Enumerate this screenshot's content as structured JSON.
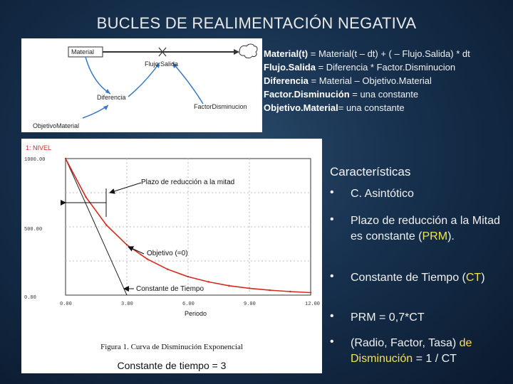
{
  "title": "BUCLES DE REALIMENTACIÓN NEGATIVA",
  "diagram": {
    "labels": {
      "material": "Material",
      "flujo": "Flujo.Salida",
      "diferencia": "Diferencia",
      "factor": "FactorDisminucion",
      "objetivo": "ObjetivoMaterial"
    }
  },
  "equations": [
    {
      "term": "Material(t)",
      "rest": " = Material(t – dt) + ( – Flujo.Salida) * dt"
    },
    {
      "term": "Flujo.Salida",
      "rest": " = Diferencia * Factor.Disminucion"
    },
    {
      "term": "Diferencia",
      "rest": " = Material – Objetivo.Material"
    },
    {
      "term": "Factor.Disminución",
      "rest": " = una constante"
    },
    {
      "term": "Objetivo.Material",
      "rest": "= una constante"
    }
  ],
  "chart": {
    "series_label": "1: NIVEL",
    "y_ticks": [
      "1000.00",
      "500.00",
      "0.00"
    ],
    "x_ticks": [
      "0.00",
      "3.00",
      "6.00",
      "9.00",
      "12.00"
    ],
    "xlabel": "Periodo",
    "annotation_half": "Plazo de reducción a la mitad",
    "annotation_goal": "Objetivo (=0)",
    "annotation_const": "Constante de Tiempo",
    "figure_caption": "Figura 1.  Curva de Disminución Exponencial",
    "bottom_caption": "Constante de tiempo = 3",
    "color": "#d42a1e"
  },
  "chart_data": {
    "type": "line",
    "x": [
      0,
      1,
      2,
      3,
      4,
      5,
      6,
      7,
      8,
      9,
      10,
      11,
      12
    ],
    "series": [
      {
        "name": "1: NIVEL",
        "values": [
          1000,
          717,
          513,
          368,
          264,
          189,
          135,
          97,
          69,
          50,
          36,
          26,
          18
        ]
      }
    ],
    "xlabel": "Periodo",
    "ylabel": "",
    "xlim": [
      0,
      12
    ],
    "ylim": [
      0,
      1000
    ],
    "title": "Figura 1.  Curva de Disminución Exponencial"
  },
  "characteristics": {
    "title": "Características",
    "items": [
      {
        "text": "C. Asintótico"
      },
      {
        "pre": "Plazo de reducción a la Mitad es constante (",
        "hl": "PRM",
        "post": ")."
      },
      {
        "pre": "Constante de Tiempo (",
        "hl": "CT",
        "post": ")"
      },
      {
        "text": "PRM = 0,7*CT"
      },
      {
        "pre": "(Radio, Factor, Tasa) ",
        "hl": "de Disminución",
        "post": " = 1 / CT"
      }
    ]
  }
}
